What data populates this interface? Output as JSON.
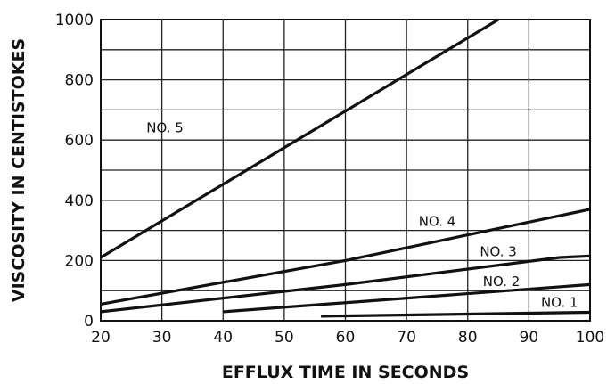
{
  "chart_data": {
    "type": "line",
    "title": "",
    "xlabel": "EFFLUX TIME IN SECONDS",
    "ylabel": "VISCOSITY IN CENTISTOKES",
    "xlim": [
      20,
      100
    ],
    "ylim": [
      0,
      1000
    ],
    "x_ticks": [
      20,
      30,
      40,
      50,
      60,
      70,
      80,
      90,
      100
    ],
    "y_ticks": [
      0,
      200,
      400,
      600,
      800,
      1000
    ],
    "y_minor_grid": [
      100,
      300,
      500,
      700,
      900
    ],
    "grid": true,
    "legend": "none",
    "series": [
      {
        "name": "NO. 1",
        "x": [
          56,
          100
        ],
        "y": [
          15,
          28
        ]
      },
      {
        "name": "NO. 2",
        "x": [
          40,
          100
        ],
        "y": [
          30,
          120
        ]
      },
      {
        "name": "NO. 3",
        "x": [
          20,
          60,
          95,
          100
        ],
        "y": [
          30,
          120,
          210,
          215
        ]
      },
      {
        "name": "NO. 4",
        "x": [
          20,
          60,
          100
        ],
        "y": [
          55,
          200,
          370
        ]
      },
      {
        "name": "NO. 5",
        "x": [
          20,
          85
        ],
        "y": [
          210,
          1000
        ]
      }
    ],
    "annotations": [
      {
        "text": "NO. 1",
        "x": 95,
        "y": 60
      },
      {
        "text": "NO. 2",
        "x": 85.5,
        "y": 130
      },
      {
        "text": "NO. 3",
        "x": 85,
        "y": 230
      },
      {
        "text": "NO. 4",
        "x": 75,
        "y": 330
      },
      {
        "text": "NO. 5",
        "x": 30.5,
        "y": 640
      }
    ]
  }
}
